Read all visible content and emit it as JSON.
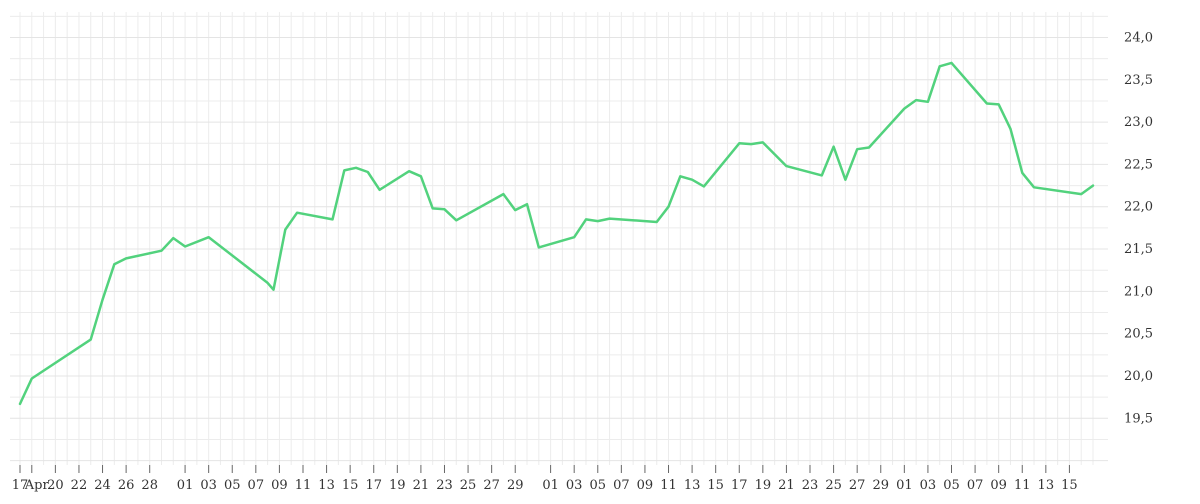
{
  "chart_data": {
    "type": "line",
    "title": "",
    "xlabel": "",
    "ylabel": "",
    "ylim": [
      19.0,
      24.3
    ],
    "y_ticks": [
      "24,0",
      "23,5",
      "23,0",
      "22,5",
      "22,0",
      "21,5",
      "21,0",
      "20,5",
      "20,0",
      "19,5"
    ],
    "y_tick_values": [
      24.0,
      23.5,
      23.0,
      22.5,
      22.0,
      21.5,
      21.0,
      20.5,
      20.0,
      19.5
    ],
    "x_range": [
      0,
      91
    ],
    "x_ticks": [
      {
        "x": 0,
        "label": "17"
      },
      {
        "x": 1,
        "label": "Apr"
      },
      {
        "x": 3,
        "label": "20"
      },
      {
        "x": 5,
        "label": "22"
      },
      {
        "x": 7,
        "label": "24"
      },
      {
        "x": 9,
        "label": "26"
      },
      {
        "x": 11,
        "label": "28"
      },
      {
        "x": 14,
        "label": "01"
      },
      {
        "x": 16,
        "label": "03"
      },
      {
        "x": 18,
        "label": "05"
      },
      {
        "x": 20,
        "label": "07"
      },
      {
        "x": 22,
        "label": "09"
      },
      {
        "x": 24,
        "label": "11"
      },
      {
        "x": 26,
        "label": "13"
      },
      {
        "x": 28,
        "label": "15"
      },
      {
        "x": 30,
        "label": "17"
      },
      {
        "x": 32,
        "label": "19"
      },
      {
        "x": 34,
        "label": "21"
      },
      {
        "x": 36,
        "label": "23"
      },
      {
        "x": 38,
        "label": "25"
      },
      {
        "x": 40,
        "label": "27"
      },
      {
        "x": 42,
        "label": "29"
      },
      {
        "x": 45,
        "label": "01"
      },
      {
        "x": 47,
        "label": "03"
      },
      {
        "x": 49,
        "label": "05"
      },
      {
        "x": 51,
        "label": "07"
      },
      {
        "x": 53,
        "label": "09"
      },
      {
        "x": 55,
        "label": "11"
      },
      {
        "x": 57,
        "label": "13"
      },
      {
        "x": 59,
        "label": "15"
      },
      {
        "x": 61,
        "label": "17"
      },
      {
        "x": 63,
        "label": "19"
      },
      {
        "x": 65,
        "label": "21"
      },
      {
        "x": 67,
        "label": "23"
      },
      {
        "x": 69,
        "label": "25"
      },
      {
        "x": 71,
        "label": "27"
      },
      {
        "x": 73,
        "label": "29"
      },
      {
        "x": 75,
        "label": "01"
      },
      {
        "x": 77,
        "label": "03"
      },
      {
        "x": 79,
        "label": "05"
      },
      {
        "x": 81,
        "label": "07"
      },
      {
        "x": 83,
        "label": "09"
      },
      {
        "x": 85,
        "label": "11"
      },
      {
        "x": 87,
        "label": "13"
      },
      {
        "x": 89,
        "label": "15"
      }
    ],
    "grid": true,
    "legend": "none",
    "series": [
      {
        "color": "#52d27d",
        "points": [
          [
            0,
            19.67
          ],
          [
            1,
            19.97
          ],
          [
            6,
            20.43
          ],
          [
            7,
            20.9
          ],
          [
            8,
            21.32
          ],
          [
            9,
            21.39
          ],
          [
            12,
            21.48
          ],
          [
            13,
            21.63
          ],
          [
            14,
            21.53
          ],
          [
            16,
            21.64
          ],
          [
            21,
            21.1
          ],
          [
            21.5,
            21.02
          ],
          [
            22.5,
            21.73
          ],
          [
            23.5,
            21.93
          ],
          [
            26.5,
            21.85
          ],
          [
            27.5,
            22.43
          ],
          [
            28.5,
            22.46
          ],
          [
            29.5,
            22.41
          ],
          [
            30.5,
            22.2
          ],
          [
            33,
            22.42
          ],
          [
            34,
            22.36
          ],
          [
            35,
            21.98
          ],
          [
            36,
            21.97
          ],
          [
            37,
            21.84
          ],
          [
            41,
            22.15
          ],
          [
            42,
            21.96
          ],
          [
            43,
            22.03
          ],
          [
            44,
            21.52
          ],
          [
            47,
            21.64
          ],
          [
            48,
            21.85
          ],
          [
            49,
            21.83
          ],
          [
            50,
            21.86
          ],
          [
            54,
            21.82
          ],
          [
            55,
            22.0
          ],
          [
            56,
            22.36
          ],
          [
            57,
            22.32
          ],
          [
            58,
            22.24
          ],
          [
            61,
            22.75
          ],
          [
            62,
            22.74
          ],
          [
            63,
            22.76
          ],
          [
            65,
            22.48
          ],
          [
            68,
            22.37
          ],
          [
            69,
            22.71
          ],
          [
            70,
            22.32
          ],
          [
            71,
            22.68
          ],
          [
            72,
            22.7
          ],
          [
            75,
            23.16
          ],
          [
            76,
            23.26
          ],
          [
            77,
            23.24
          ],
          [
            78,
            23.66
          ],
          [
            79,
            23.7
          ],
          [
            82,
            23.22
          ],
          [
            83,
            23.21
          ],
          [
            84,
            22.92
          ],
          [
            85,
            22.4
          ],
          [
            86,
            22.23
          ],
          [
            90,
            22.15
          ],
          [
            91,
            22.25
          ]
        ]
      }
    ]
  }
}
